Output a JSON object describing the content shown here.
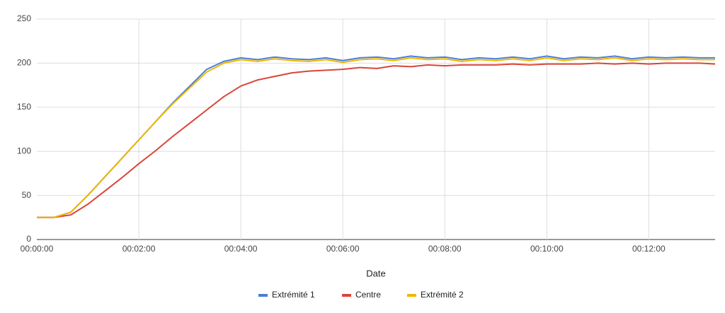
{
  "chart_data": {
    "type": "line",
    "x_label": "Date",
    "x": [
      0,
      20,
      40,
      60,
      80,
      100,
      120,
      140,
      160,
      180,
      200,
      220,
      240,
      260,
      280,
      300,
      320,
      340,
      360,
      380,
      400,
      420,
      440,
      460,
      480,
      500,
      520,
      540,
      560,
      580,
      600,
      620,
      640,
      660,
      680,
      700,
      720,
      740,
      760,
      780,
      798
    ],
    "xlim": [
      0,
      798
    ],
    "xticks": [
      {
        "value": 0,
        "label": "00:00:00"
      },
      {
        "value": 120,
        "label": "00:02:00"
      },
      {
        "value": 240,
        "label": "00:04:00"
      },
      {
        "value": 360,
        "label": "00:06:00"
      },
      {
        "value": 480,
        "label": "00:08:00"
      },
      {
        "value": 600,
        "label": "00:10:00"
      },
      {
        "value": 720,
        "label": "00:12:00"
      }
    ],
    "ylim": [
      0,
      250
    ],
    "yticks": [
      0,
      50,
      100,
      150,
      200,
      250
    ],
    "grid": true,
    "series": [
      {
        "name": "Extrémité 1",
        "color": "#4a7fd4",
        "values": [
          25,
          25,
          31,
          50,
          71,
          92,
          113,
          134,
          155,
          174,
          193,
          202,
          206,
          204,
          207,
          205,
          204,
          206,
          203,
          206,
          207,
          205,
          208,
          206,
          207,
          204,
          206,
          205,
          207,
          205,
          208,
          205,
          207,
          206,
          208,
          205,
          207,
          206,
          207,
          206,
          206
        ]
      },
      {
        "name": "Centre",
        "color": "#d9463a",
        "values": [
          25,
          25,
          28,
          40,
          55,
          70,
          86,
          101,
          117,
          132,
          147,
          162,
          174,
          181,
          185,
          189,
          191,
          192,
          193,
          195,
          194,
          197,
          196,
          198,
          197,
          198,
          198,
          198,
          199,
          198,
          199,
          199,
          199,
          200,
          199,
          200,
          199,
          200,
          200,
          200,
          199
        ]
      },
      {
        "name": "Extrémité 2",
        "color": "#f1b500",
        "values": [
          25,
          25,
          31,
          50,
          71,
          92,
          113,
          134,
          154,
          172,
          190,
          200,
          204,
          202,
          205,
          203,
          202,
          204,
          201,
          204,
          205,
          203,
          206,
          204,
          205,
          202,
          204,
          203,
          205,
          203,
          206,
          203,
          205,
          204,
          206,
          203,
          205,
          204,
          205,
          204,
          204
        ]
      }
    ]
  }
}
